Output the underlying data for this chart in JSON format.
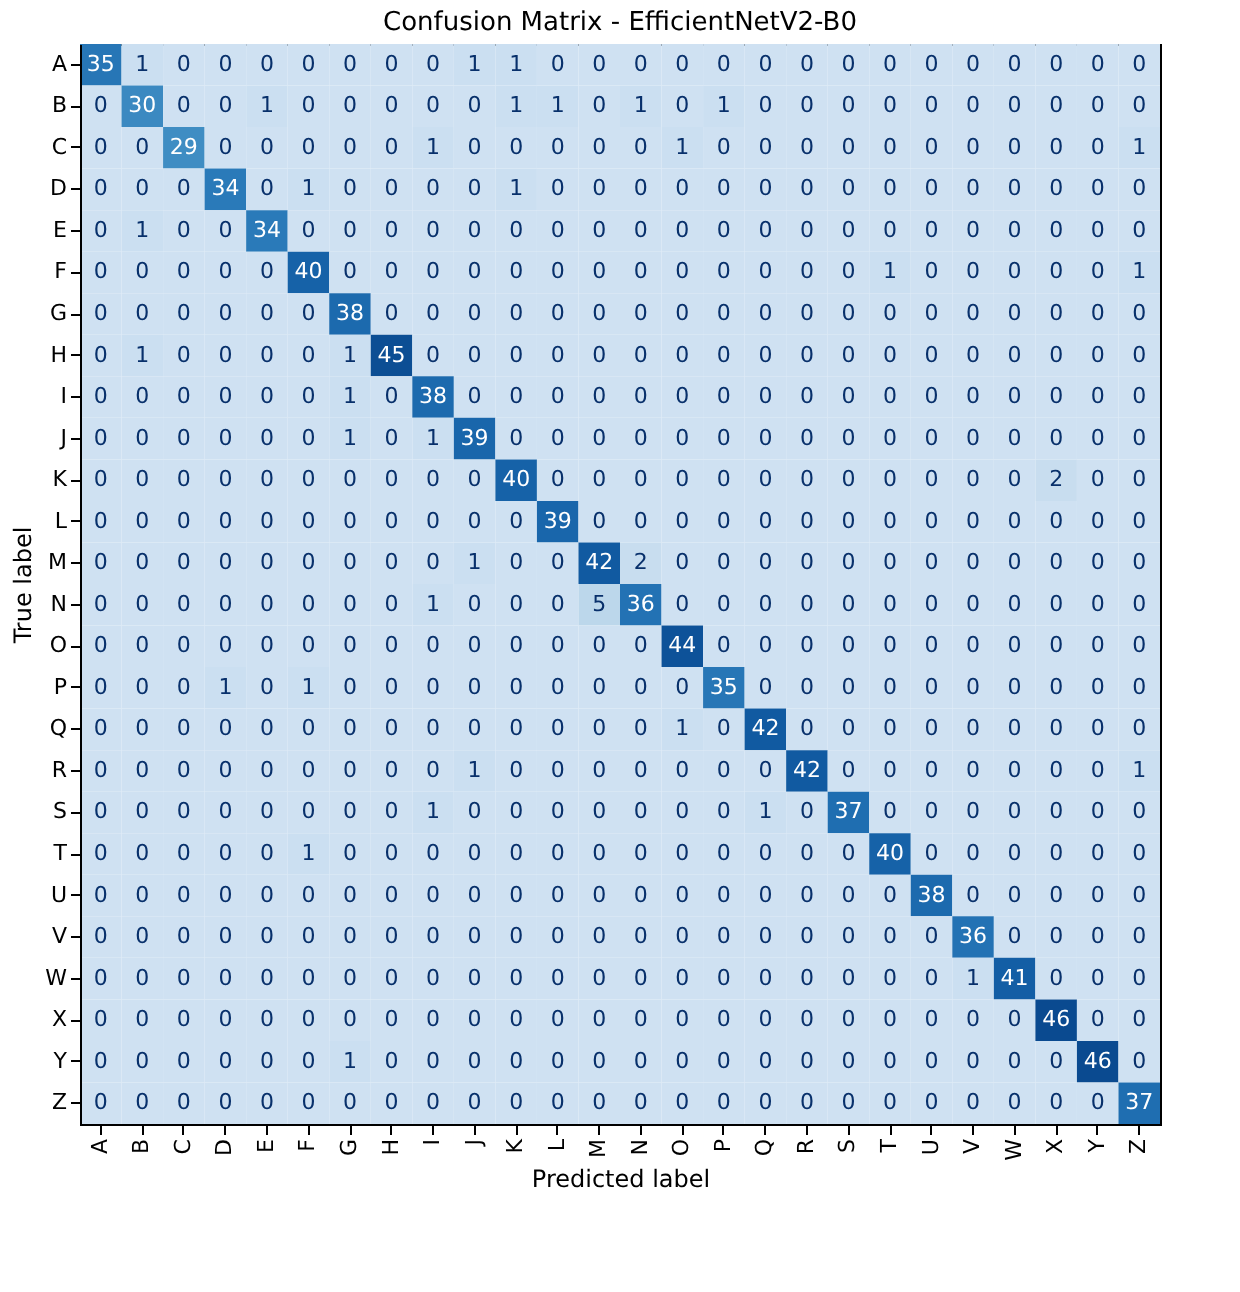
{
  "chart_data": {
    "type": "heatmap",
    "title": "Confusion Matrix - EfficientNetV2-B0",
    "xlabel": "Predicted label",
    "ylabel": "True label",
    "categories": [
      "A",
      "B",
      "C",
      "D",
      "E",
      "F",
      "G",
      "H",
      "I",
      "J",
      "K",
      "L",
      "M",
      "N",
      "O",
      "P",
      "Q",
      "R",
      "S",
      "T",
      "U",
      "V",
      "W",
      "X",
      "Y",
      "Z"
    ],
    "y_categories": [
      "A",
      "B",
      "C",
      "D",
      "E",
      "F",
      "G",
      "H",
      "I",
      "J",
      "K",
      "L",
      "M",
      "N",
      "O",
      "P",
      "Q",
      "R",
      "S",
      "T",
      "U",
      "V",
      "W",
      "X",
      "Y",
      "Z"
    ],
    "cells": [
      [
        35,
        1,
        0,
        0,
        0,
        0,
        0,
        0,
        0,
        1,
        1,
        0,
        0,
        0,
        0,
        0,
        0,
        0,
        0,
        0,
        0,
        0,
        0,
        0,
        0,
        0
      ],
      [
        0,
        30,
        0,
        0,
        1,
        0,
        0,
        0,
        0,
        0,
        1,
        1,
        0,
        1,
        0,
        1,
        0,
        0,
        0,
        0,
        0,
        0,
        0,
        0,
        0,
        0
      ],
      [
        0,
        0,
        29,
        0,
        0,
        0,
        0,
        0,
        1,
        0,
        0,
        0,
        0,
        0,
        1,
        0,
        0,
        0,
        0,
        0,
        0,
        0,
        0,
        0,
        0,
        1
      ],
      [
        0,
        0,
        0,
        34,
        0,
        1,
        0,
        0,
        0,
        0,
        1,
        0,
        0,
        0,
        0,
        0,
        0,
        0,
        0,
        0,
        0,
        0,
        0,
        0,
        0,
        0
      ],
      [
        0,
        1,
        0,
        0,
        34,
        0,
        0,
        0,
        0,
        0,
        0,
        0,
        0,
        0,
        0,
        0,
        0,
        0,
        0,
        0,
        0,
        0,
        0,
        0,
        0,
        0
      ],
      [
        0,
        0,
        0,
        0,
        0,
        40,
        0,
        0,
        0,
        0,
        0,
        0,
        0,
        0,
        0,
        0,
        0,
        0,
        0,
        1,
        0,
        0,
        0,
        0,
        0,
        1
      ],
      [
        0,
        0,
        0,
        0,
        0,
        0,
        38,
        0,
        0,
        0,
        0,
        0,
        0,
        0,
        0,
        0,
        0,
        0,
        0,
        0,
        0,
        0,
        0,
        0,
        0,
        0
      ],
      [
        0,
        1,
        0,
        0,
        0,
        0,
        1,
        45,
        0,
        0,
        0,
        0,
        0,
        0,
        0,
        0,
        0,
        0,
        0,
        0,
        0,
        0,
        0,
        0,
        0,
        0
      ],
      [
        0,
        0,
        0,
        0,
        0,
        0,
        1,
        0,
        38,
        0,
        0,
        0,
        0,
        0,
        0,
        0,
        0,
        0,
        0,
        0,
        0,
        0,
        0,
        0,
        0,
        0
      ],
      [
        0,
        0,
        0,
        0,
        0,
        0,
        1,
        0,
        1,
        39,
        0,
        0,
        0,
        0,
        0,
        0,
        0,
        0,
        0,
        0,
        0,
        0,
        0,
        0,
        0,
        0
      ],
      [
        0,
        0,
        0,
        0,
        0,
        0,
        0,
        0,
        0,
        0,
        40,
        0,
        0,
        0,
        0,
        0,
        0,
        0,
        0,
        0,
        0,
        0,
        0,
        2,
        0,
        0
      ],
      [
        0,
        0,
        0,
        0,
        0,
        0,
        0,
        0,
        0,
        0,
        0,
        39,
        0,
        0,
        0,
        0,
        0,
        0,
        0,
        0,
        0,
        0,
        0,
        0,
        0,
        0
      ],
      [
        0,
        0,
        0,
        0,
        0,
        0,
        0,
        0,
        0,
        1,
        0,
        0,
        42,
        2,
        0,
        0,
        0,
        0,
        0,
        0,
        0,
        0,
        0,
        0,
        0,
        0
      ],
      [
        0,
        0,
        0,
        0,
        0,
        0,
        0,
        0,
        1,
        0,
        0,
        0,
        5,
        36,
        0,
        0,
        0,
        0,
        0,
        0,
        0,
        0,
        0,
        0,
        0,
        0
      ],
      [
        0,
        0,
        0,
        0,
        0,
        0,
        0,
        0,
        0,
        0,
        0,
        0,
        0,
        0,
        44,
        0,
        0,
        0,
        0,
        0,
        0,
        0,
        0,
        0,
        0,
        0
      ],
      [
        0,
        0,
        0,
        1,
        0,
        1,
        0,
        0,
        0,
        0,
        0,
        0,
        0,
        0,
        0,
        35,
        0,
        0,
        0,
        0,
        0,
        0,
        0,
        0,
        0,
        0
      ],
      [
        0,
        0,
        0,
        0,
        0,
        0,
        0,
        0,
        0,
        0,
        0,
        0,
        0,
        0,
        1,
        0,
        42,
        0,
        0,
        0,
        0,
        0,
        0,
        0,
        0,
        0
      ],
      [
        0,
        0,
        0,
        0,
        0,
        0,
        0,
        0,
        0,
        1,
        0,
        0,
        0,
        0,
        0,
        0,
        0,
        42,
        0,
        0,
        0,
        0,
        0,
        0,
        0,
        1
      ],
      [
        0,
        0,
        0,
        0,
        0,
        0,
        0,
        0,
        1,
        0,
        0,
        0,
        0,
        0,
        0,
        0,
        1,
        0,
        37,
        0,
        0,
        0,
        0,
        0,
        0,
        0
      ],
      [
        0,
        0,
        0,
        0,
        0,
        1,
        0,
        0,
        0,
        0,
        0,
        0,
        0,
        0,
        0,
        0,
        0,
        0,
        0,
        40,
        0,
        0,
        0,
        0,
        0,
        0
      ],
      [
        0,
        0,
        0,
        0,
        0,
        0,
        0,
        0,
        0,
        0,
        0,
        0,
        0,
        0,
        0,
        0,
        0,
        0,
        0,
        0,
        38,
        0,
        0,
        0,
        0,
        0
      ],
      [
        0,
        0,
        0,
        0,
        0,
        0,
        0,
        0,
        0,
        0,
        0,
        0,
        0,
        0,
        0,
        0,
        0,
        0,
        0,
        0,
        0,
        36,
        0,
        0,
        0,
        0
      ],
      [
        0,
        0,
        0,
        0,
        0,
        0,
        0,
        0,
        0,
        0,
        0,
        0,
        0,
        0,
        0,
        0,
        0,
        0,
        0,
        0,
        0,
        1,
        41,
        0,
        0,
        0
      ],
      [
        0,
        0,
        0,
        0,
        0,
        0,
        0,
        0,
        0,
        0,
        0,
        0,
        0,
        0,
        0,
        0,
        0,
        0,
        0,
        0,
        0,
        0,
        0,
        46,
        0,
        0
      ],
      [
        0,
        0,
        0,
        0,
        0,
        0,
        1,
        0,
        0,
        0,
        0,
        0,
        0,
        0,
        0,
        0,
        0,
        0,
        0,
        0,
        0,
        0,
        0,
        0,
        46,
        0
      ],
      [
        0,
        0,
        0,
        0,
        0,
        0,
        0,
        0,
        0,
        0,
        0,
        0,
        0,
        0,
        0,
        0,
        0,
        0,
        0,
        0,
        0,
        0,
        0,
        0,
        0,
        37
      ]
    ],
    "data_labels": true
  }
}
